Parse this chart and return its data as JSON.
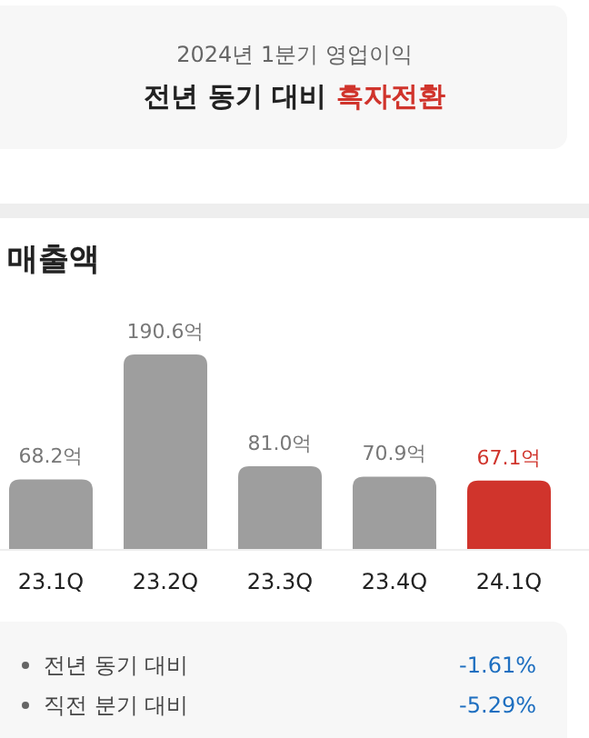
{
  "chart_data": [
    {
      "type": "other",
      "title": "2024년 1분기 영업이익",
      "annotations": [
        "전년 동기 대비",
        "흑자전환"
      ]
    },
    {
      "type": "bar",
      "title": "매출액",
      "categories": [
        "23.1Q",
        "23.2Q",
        "23.3Q",
        "23.4Q",
        "24.1Q"
      ],
      "values": [
        68.2,
        190.6,
        81.0,
        70.9,
        67.1
      ],
      "colors": [
        "#9e9e9e",
        "#9e9e9e",
        "#9e9e9e",
        "#9e9e9e",
        "#d0342c"
      ],
      "value_labels": [
        "68.2억",
        "190.6억",
        "81.0억",
        "70.9억",
        "67.1억"
      ]
    },
    {
      "type": "other",
      "annotations": [
        "전년 동기 대비",
        "-1.61%",
        "직전 분기 대비",
        "-5.29%"
      ]
    }
  ]
}
